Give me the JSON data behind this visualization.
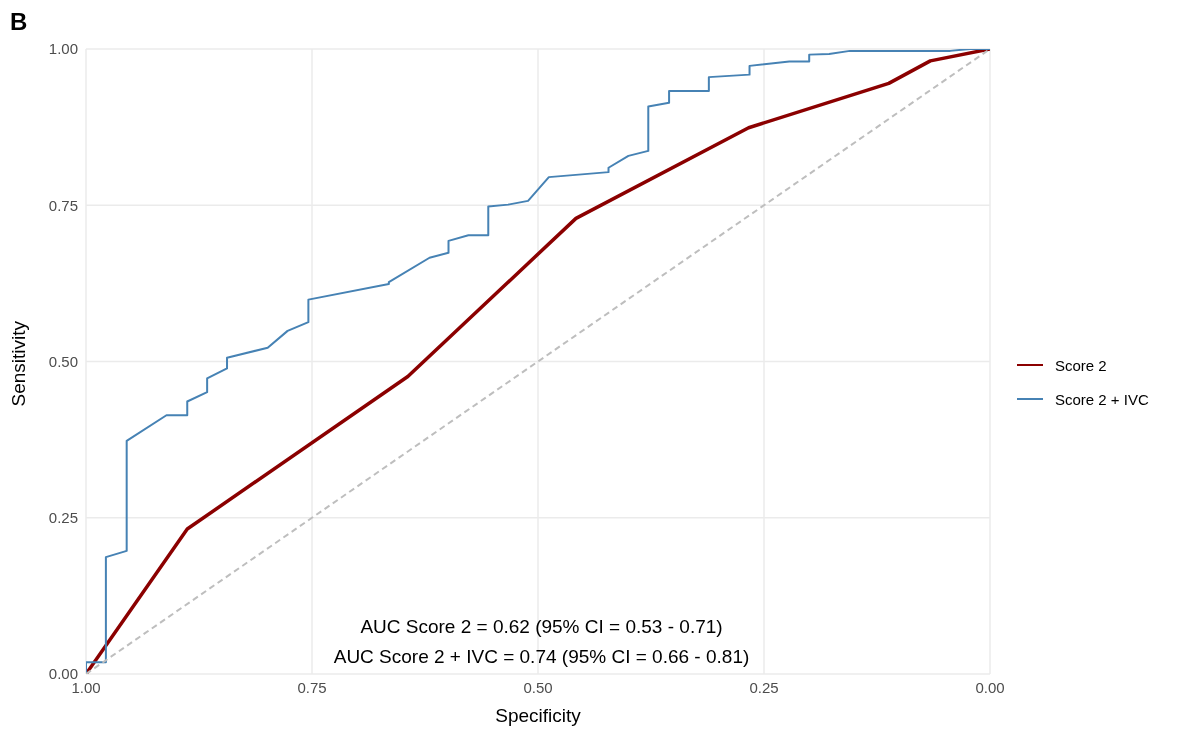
{
  "chart_data": {
    "type": "line",
    "title": "B",
    "xlabel": "Specificity",
    "ylabel": "Sensitivity",
    "xlim": [
      1,
      0
    ],
    "xticks": [
      {
        "value": 1,
        "label": "1.00"
      },
      {
        "value": 0.75,
        "label": "0.75"
      },
      {
        "value": 0.5,
        "label": "0.50"
      },
      {
        "value": 0.25,
        "label": "0.25"
      },
      {
        "value": 0,
        "label": "0.00"
      }
    ],
    "ylim": [
      0,
      1
    ],
    "yticks": [
      {
        "value": 0,
        "label": "0.00"
      },
      {
        "value": 0.25,
        "label": "0.25"
      },
      {
        "value": 0.5,
        "label": "0.50"
      },
      {
        "value": 0.75,
        "label": "0.75"
      },
      {
        "value": 1,
        "label": "1.00"
      }
    ],
    "grid": true,
    "legend": "right",
    "marker": "none",
    "series": [
      {
        "name": "Score 2",
        "color": "#8b0000",
        "x": [
          1,
          0.888,
          0.644,
          0.458,
          0.267,
          0.112,
          0.066,
          0
        ],
        "values": [
          0,
          0.232,
          0.476,
          0.729,
          0.874,
          0.945,
          0.981,
          1
        ]
      },
      {
        "name": "Score 2 + IVC",
        "color": "#4682b4",
        "x": [
          1,
          1,
          0.978,
          0.978,
          0.955,
          0.955,
          0.911,
          0.888,
          0.888,
          0.866,
          0.866,
          0.844,
          0.844,
          0.799,
          0.777,
          0.754,
          0.754,
          0.665,
          0.665,
          0.62,
          0.599,
          0.599,
          0.577,
          0.555,
          0.555,
          0.533,
          0.511,
          0.488,
          0.422,
          0.422,
          0.4,
          0.378,
          0.378,
          0.355,
          0.355,
          0.311,
          0.311,
          0.266,
          0.266,
          0.222,
          0.2,
          0.2,
          0.178,
          0.155,
          0.044,
          0.022,
          0
        ],
        "values": [
          0,
          0.019,
          0.019,
          0.187,
          0.197,
          0.373,
          0.414,
          0.414,
          0.436,
          0.451,
          0.473,
          0.489,
          0.506,
          0.522,
          0.549,
          0.563,
          0.599,
          0.624,
          0.627,
          0.666,
          0.674,
          0.693,
          0.702,
          0.702,
          0.748,
          0.751,
          0.757,
          0.795,
          0.803,
          0.81,
          0.829,
          0.837,
          0.908,
          0.914,
          0.933,
          0.933,
          0.955,
          0.959,
          0.973,
          0.98,
          0.98,
          0.991,
          0.992,
          0.997,
          0.997,
          1,
          1
        ]
      },
      {
        "color": "#bebebe",
        "line_style": "dashed",
        "x": [
          1,
          0
        ],
        "values": [
          0,
          1
        ]
      }
    ],
    "annotations": [
      "AUC Score 2 = 0.62 (95% CI = 0.53 - 0.71)",
      "AUC Score 2 + IVC = 0.74 (95% CI = 0.66 - 0.81)"
    ]
  }
}
